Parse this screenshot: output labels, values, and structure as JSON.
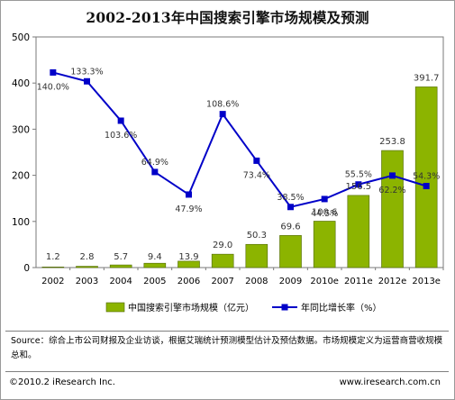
{
  "chart_data": {
    "type": "bar",
    "title": "2002-2013年中国搜索引擎市场规模及预测",
    "categories": [
      "2002",
      "2003",
      "2004",
      "2005",
      "2006",
      "2007",
      "2008",
      "2009",
      "2010e",
      "2011e",
      "2012e",
      "2013e"
    ],
    "ylim": [
      0,
      500
    ],
    "yticks": [
      0,
      100,
      200,
      300,
      400,
      500
    ],
    "grid": false,
    "legend_position": "bottom",
    "series": [
      {
        "name": "中国搜索引擎市场规模（亿元）",
        "kind": "bar",
        "color": "#8cb400",
        "values": [
          1.2,
          2.8,
          5.7,
          9.4,
          13.9,
          29.0,
          50.3,
          69.6,
          100.6,
          156.5,
          253.8,
          391.7
        ],
        "labels": [
          "1.2",
          "2.8",
          "5.7",
          "9.4",
          "13.9",
          "29.0",
          "50.3",
          "69.6",
          "100.6",
          "156.5",
          "253.8",
          "391.7"
        ]
      },
      {
        "name": "年同比增长率（%）",
        "kind": "line",
        "color": "#0000c8",
        "values": [
          140.0,
          133.3,
          103.6,
          64.9,
          47.9,
          108.6,
          73.4,
          38.5,
          44.5,
          55.5,
          62.2,
          54.3
        ],
        "labels": [
          "140.0%",
          "133.3%",
          "103.6%",
          "64.9%",
          "47.9%",
          "108.6%",
          "73.4%",
          "38.5%",
          "44.5%",
          "55.5%",
          "62.2%",
          "54.3%"
        ]
      }
    ]
  },
  "source": "Source：综合上市公司财报及企业访谈，根据艾瑞统计预测模型估计及预估数据。市场规模定义为运营商营收规模总和。",
  "footer": {
    "copyright": "©2010.2 iResearch Inc.",
    "website": "www.iresearch.com.cn"
  }
}
